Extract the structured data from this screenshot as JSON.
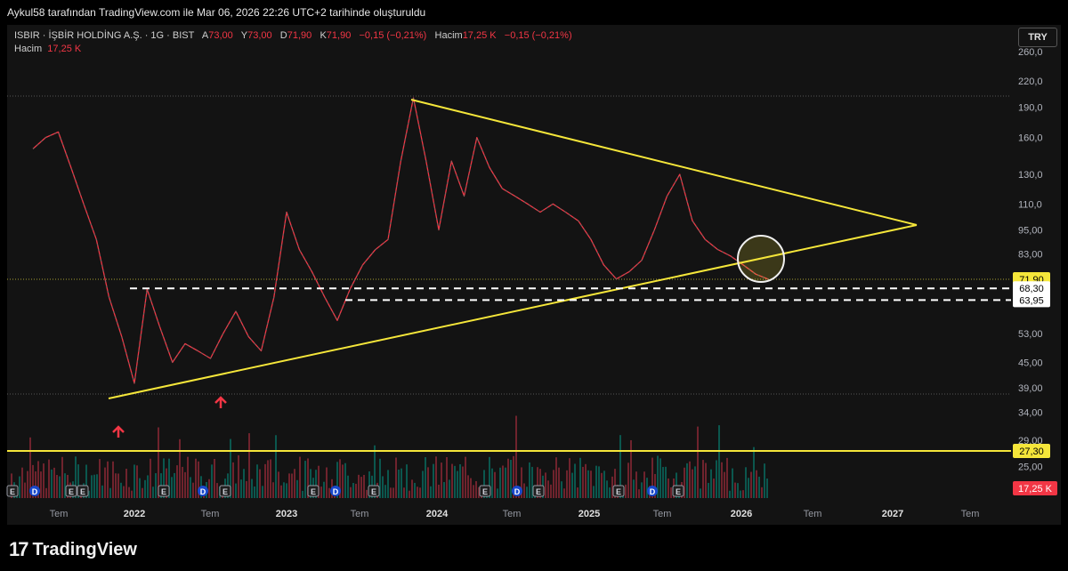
{
  "header": {
    "title": "Aykul58 tarafından TradingView.com ile Mar 06, 2026 22:26 UTC+2 tarihinde oluşturuldu"
  },
  "legend": {
    "symbol": "ISBIR · İŞBİR HOLDİNG A.Ş. · 1G · BIST",
    "o_label": "A",
    "o_val": "73,00",
    "h_label": "Y",
    "h_val": "73,00",
    "l_label": "D",
    "l_val": "71,90",
    "c_label": "K",
    "c_val": "71,90",
    "chg": "−0,15 (−0,21%)",
    "vol_label": "Hacim",
    "vol_val": "17,25 K",
    "vol_chg": "−0,15 (−0,21%)",
    "row2_label": "Hacim",
    "row2_val": "17,25 K"
  },
  "currency": "TRY",
  "brand": {
    "logo": "17",
    "name": "TradingView"
  },
  "colors": {
    "bg": "#131313",
    "up": "#089981",
    "down": "#f23645",
    "trend": "#f5e63a",
    "badge_price": "#f5e63a",
    "badge_vol": "#f23645"
  },
  "chart_data": {
    "type": "line",
    "ylabel": "",
    "y_scale": "log",
    "y_ticks": [
      "260,0",
      "220,0",
      "190,0",
      "160,0",
      "130,0",
      "110,0",
      "95,00",
      "83,00",
      "53,00",
      "45,00",
      "39,00",
      "34,00",
      "29,00",
      "25,00"
    ],
    "x_ticks": [
      "Tem",
      "2022",
      "Tem",
      "2023",
      "Tem",
      "2024",
      "Tem",
      "2025",
      "Tem",
      "2026",
      "Tem",
      "2027",
      "Tem"
    ],
    "price_badges": [
      {
        "label": "71,90",
        "value": 71.9,
        "style": "yellow"
      },
      {
        "label": "68,30",
        "value": 68.3,
        "style": "white"
      },
      {
        "label": "63,95",
        "value": 63.95,
        "style": "white"
      },
      {
        "label": "27,30",
        "value": 27.3,
        "style": "yellow"
      }
    ],
    "volume_badge": "17,25 K",
    "series": [
      {
        "values": [
          {
            "x": "2021-05",
            "y": 150
          },
          {
            "x": "2021-06",
            "y": 160
          },
          {
            "x": "2021-07",
            "y": 165
          },
          {
            "x": "2021-08",
            "y": 135
          },
          {
            "x": "2021-09",
            "y": 110
          },
          {
            "x": "2021-10",
            "y": 90
          },
          {
            "x": "2021-11",
            "y": 65
          },
          {
            "x": "2021-12",
            "y": 52
          },
          {
            "x": "2022-01",
            "y": 40
          },
          {
            "x": "2022-02",
            "y": 68
          },
          {
            "x": "2022-03",
            "y": 55
          },
          {
            "x": "2022-04",
            "y": 45
          },
          {
            "x": "2022-05",
            "y": 50
          },
          {
            "x": "2022-06",
            "y": 48
          },
          {
            "x": "2022-07",
            "y": 46
          },
          {
            "x": "2022-08",
            "y": 53
          },
          {
            "x": "2022-09",
            "y": 60
          },
          {
            "x": "2022-10",
            "y": 52
          },
          {
            "x": "2022-11",
            "y": 48
          },
          {
            "x": "2022-12",
            "y": 65
          },
          {
            "x": "2023-01",
            "y": 105
          },
          {
            "x": "2023-02",
            "y": 85
          },
          {
            "x": "2023-03",
            "y": 75
          },
          {
            "x": "2023-04",
            "y": 65
          },
          {
            "x": "2023-05",
            "y": 57
          },
          {
            "x": "2023-06",
            "y": 68
          },
          {
            "x": "2023-07",
            "y": 78
          },
          {
            "x": "2023-08",
            "y": 85
          },
          {
            "x": "2023-09",
            "y": 90
          },
          {
            "x": "2023-10",
            "y": 140
          },
          {
            "x": "2023-11",
            "y": 200
          },
          {
            "x": "2023-12",
            "y": 140
          },
          {
            "x": "2024-01",
            "y": 95
          },
          {
            "x": "2024-02",
            "y": 140
          },
          {
            "x": "2024-03",
            "y": 115
          },
          {
            "x": "2024-04",
            "y": 160
          },
          {
            "x": "2024-05",
            "y": 135
          },
          {
            "x": "2024-06",
            "y": 120
          },
          {
            "x": "2024-07",
            "y": 115
          },
          {
            "x": "2024-08",
            "y": 110
          },
          {
            "x": "2024-09",
            "y": 105
          },
          {
            "x": "2024-10",
            "y": 110
          },
          {
            "x": "2024-11",
            "y": 105
          },
          {
            "x": "2024-12",
            "y": 100
          },
          {
            "x": "2025-01",
            "y": 90
          },
          {
            "x": "2025-02",
            "y": 78
          },
          {
            "x": "2025-03",
            "y": 72
          },
          {
            "x": "2025-04",
            "y": 75
          },
          {
            "x": "2025-05",
            "y": 80
          },
          {
            "x": "2025-06",
            "y": 95
          },
          {
            "x": "2025-07",
            "y": 115
          },
          {
            "x": "2025-08",
            "y": 130
          },
          {
            "x": "2025-09",
            "y": 100
          },
          {
            "x": "2025-10",
            "y": 90
          },
          {
            "x": "2025-11",
            "y": 85
          },
          {
            "x": "2025-12",
            "y": 82
          },
          {
            "x": "2026-01",
            "y": 78
          },
          {
            "x": "2026-02",
            "y": 74
          },
          {
            "x": "2026-03",
            "y": 71.9
          }
        ]
      }
    ]
  }
}
